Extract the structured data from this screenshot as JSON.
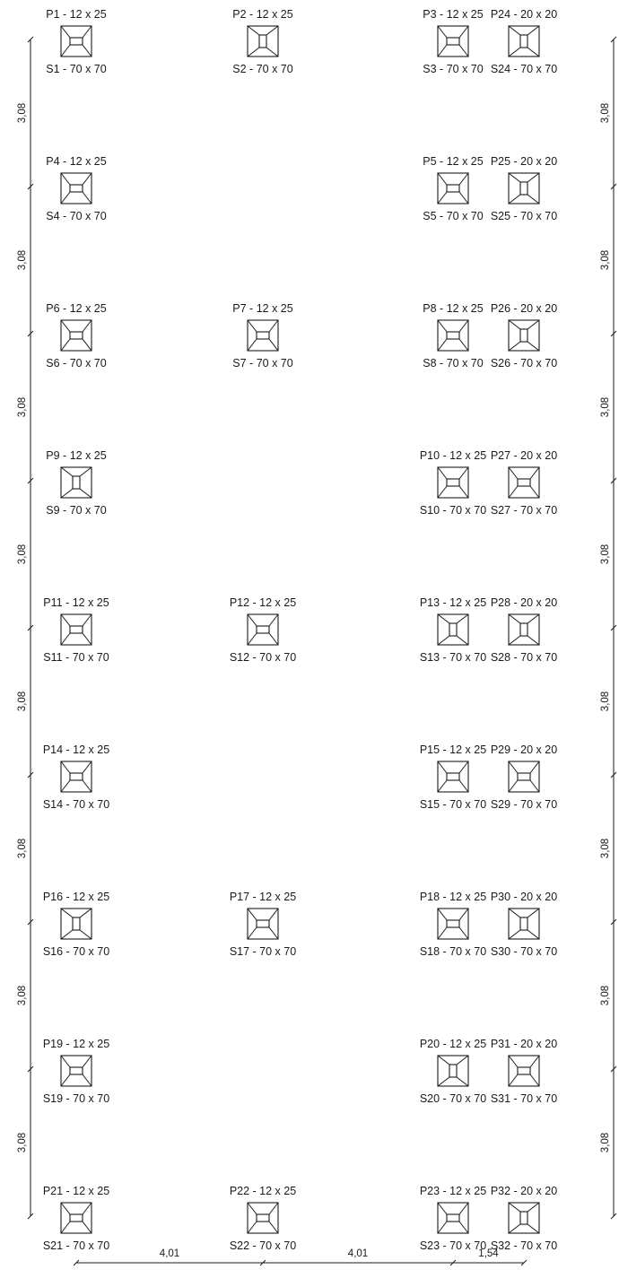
{
  "footings": [
    {
      "pillar": "P1 - 12 x 25",
      "base": "S1 - 70 x 70"
    },
    {
      "pillar": "P2 - 12 x 25",
      "base": "S2 - 70 x 70"
    },
    {
      "pillar": "P3 - 12 x 25",
      "base": "S3 - 70 x 70"
    },
    {
      "pillar": "P24 - 20 x 20",
      "base": "S24 - 70 x 70"
    },
    {
      "pillar": "P4 - 12 x 25",
      "base": "S4 - 70 x 70"
    },
    {
      "pillar": "P5 - 12 x 25",
      "base": "S5 - 70 x 70"
    },
    {
      "pillar": "P25 - 20 x 20",
      "base": "S25 - 70 x 70"
    },
    {
      "pillar": "P6 - 12 x 25",
      "base": "S6 - 70 x 70"
    },
    {
      "pillar": "P7 - 12 x 25",
      "base": "S7 - 70 x 70"
    },
    {
      "pillar": "P8 - 12 x 25",
      "base": "S8 - 70 x 70"
    },
    {
      "pillar": "P26 - 20 x 20",
      "base": "S26 - 70 x 70"
    },
    {
      "pillar": "P9 - 12 x 25",
      "base": "S9 - 70 x 70"
    },
    {
      "pillar": "P10 - 12 x 25",
      "base": "S10 - 70 x 70"
    },
    {
      "pillar": "P27 - 20 x 20",
      "base": "S27 - 70 x 70"
    },
    {
      "pillar": "P11 - 12 x 25",
      "base": "S11 - 70 x 70"
    },
    {
      "pillar": "P12 - 12 x 25",
      "base": "S12 - 70 x 70"
    },
    {
      "pillar": "P13 - 12 x 25",
      "base": "S13 - 70 x 70"
    },
    {
      "pillar": "P28 - 20 x 20",
      "base": "S28 - 70 x 70"
    },
    {
      "pillar": "P14 - 12 x 25",
      "base": "S14 - 70 x 70"
    },
    {
      "pillar": "P15 - 12 x 25",
      "base": "S15 - 70 x 70"
    },
    {
      "pillar": "P29 - 20 x 20",
      "base": "S29 - 70 x 70"
    },
    {
      "pillar": "P16 - 12 x 25",
      "base": "S16 - 70 x 70"
    },
    {
      "pillar": "P17 - 12 x 25",
      "base": "S17 - 70 x 70"
    },
    {
      "pillar": "P18 - 12 x 25",
      "base": "S18 - 70 x 70"
    },
    {
      "pillar": "P30 - 20 x 20",
      "base": "S30 - 70 x 70"
    },
    {
      "pillar": "P19 - 12 x 25",
      "base": "S19 - 70 x 70"
    },
    {
      "pillar": "P20 - 12 x 25",
      "base": "S20 - 70 x 70"
    },
    {
      "pillar": "P31 - 20 x 20",
      "base": "S31 - 70 x 70"
    },
    {
      "pillar": "P21 - 12 x 25",
      "base": "S21 - 70 x 70"
    },
    {
      "pillar": "P22 - 12 x 25",
      "base": "S22 - 70 x 70"
    },
    {
      "pillar": "P23 - 12 x 25",
      "base": "S23 - 70 x 70"
    },
    {
      "pillar": "P32 - 20 x 20",
      "base": "S32 - 70 x 70"
    }
  ],
  "dimensions": {
    "left": [
      "3,08",
      "3,08",
      "3,08",
      "3,08",
      "3,08",
      "3,08",
      "3,08",
      "3,08"
    ],
    "right": [
      "3,08",
      "3,08",
      "3,08",
      "3,08",
      "3,08",
      "3,08",
      "3,08",
      "3,08"
    ],
    "bottom": [
      "4,01",
      "4,01",
      "1,54"
    ]
  }
}
